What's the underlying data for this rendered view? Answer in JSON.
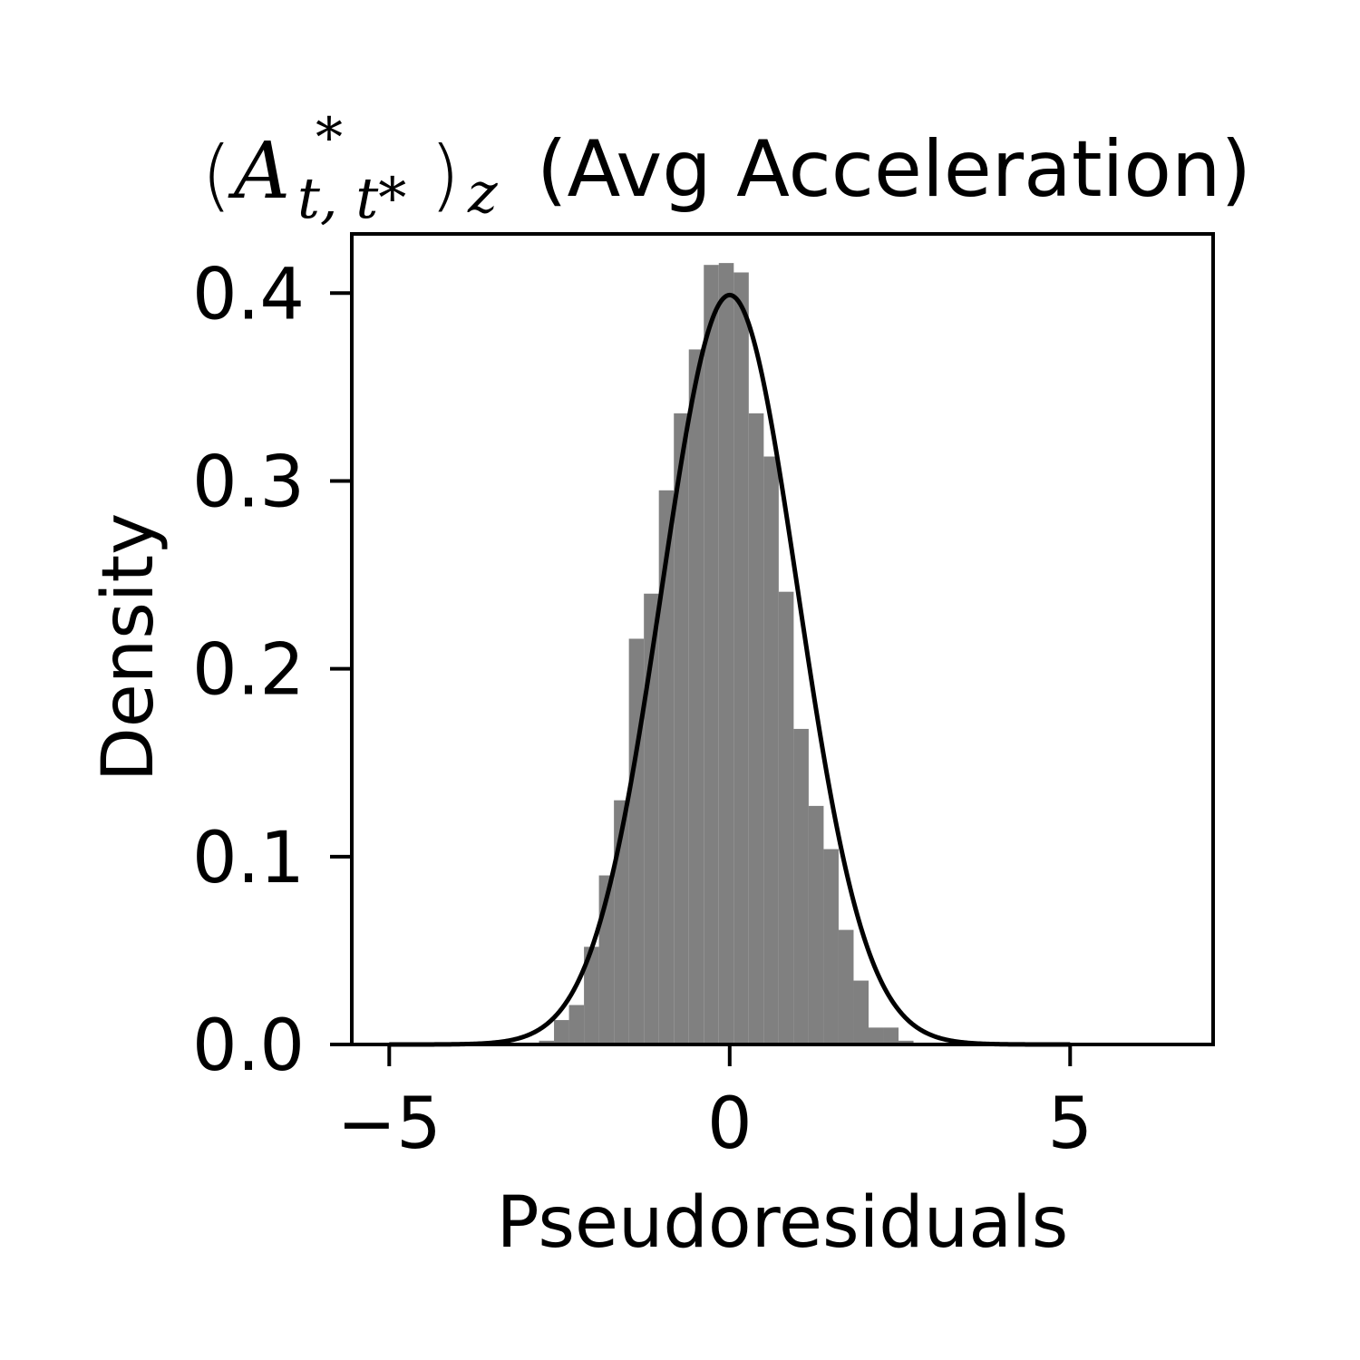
{
  "chart_data": {
    "type": "bar",
    "title": {
      "math_base": "A",
      "math_superscript": "*",
      "math_subscript": "t, t*",
      "math_outer_subscript": "z",
      "text": "(Avg Acceleration)"
    },
    "xlabel": "Pseudoresiduals",
    "ylabel": "Density",
    "xlim": [
      -5.55,
      7.1
    ],
    "ylim": [
      0,
      0.4315
    ],
    "xticks": [
      -5,
      0,
      5
    ],
    "xtick_labels": [
      "−5",
      "0",
      "5"
    ],
    "yticks": [
      0.0,
      0.1,
      0.2,
      0.3,
      0.4
    ],
    "ytick_labels": [
      "0.0",
      "0.1",
      "0.2",
      "0.3",
      "0.4"
    ],
    "grid": false,
    "histogram": {
      "color": "#808080",
      "bin_edges": [
        -5.0,
        -4.78,
        -4.56,
        -4.34,
        -4.12,
        -3.9,
        -3.68,
        -3.46,
        -3.24,
        -3.02,
        -2.8,
        -2.58,
        -2.36,
        -2.14,
        -1.92,
        -1.7,
        -1.48,
        -1.26,
        -1.04,
        -0.82,
        -0.6,
        -0.38,
        -0.16,
        0.06,
        0.28,
        0.5,
        0.72,
        0.94,
        1.16,
        1.38,
        1.6,
        1.82,
        2.04,
        2.26,
        2.48,
        2.7,
        2.92,
        3.14,
        3.36,
        3.58,
        3.8,
        4.02,
        4.24,
        4.46,
        4.68,
        4.9,
        5.12
      ],
      "values": [
        0.0005,
        0.0,
        0.0,
        0.0,
        0.0,
        0.0,
        0.0,
        0.0,
        0.0,
        0.0005,
        0.002,
        0.013,
        0.021,
        0.052,
        0.09,
        0.13,
        0.216,
        0.24,
        0.295,
        0.336,
        0.37,
        0.415,
        0.416,
        0.411,
        0.336,
        0.313,
        0.241,
        0.168,
        0.127,
        0.104,
        0.061,
        0.034,
        0.009,
        0.009,
        0.002,
        0.0005,
        0.0,
        0.0,
        0.0,
        0.0,
        0.0,
        0.0,
        0.0,
        0.0,
        0.0,
        0.0005
      ]
    },
    "curve": {
      "name": "standard normal density",
      "color": "#000000",
      "mean": 0,
      "sd": 1,
      "x_range": [
        -5,
        5
      ]
    }
  }
}
